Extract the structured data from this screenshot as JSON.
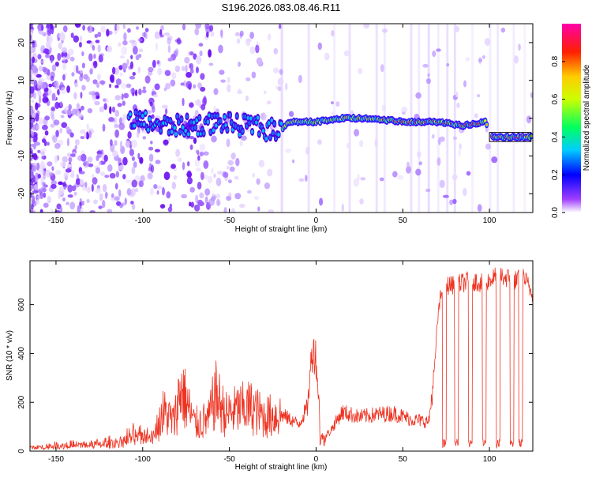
{
  "title": "S196.2026.083.08.46.R11",
  "chart_data": [
    {
      "type": "heatmap",
      "xlabel": "Height of straight line (km)",
      "ylabel": "Frequency (Hz)",
      "xlim": [
        -165,
        125
      ],
      "ylim": [
        -25,
        25
      ],
      "xticks": [
        -150,
        -100,
        -50,
        0,
        50,
        100
      ],
      "yticks": [
        -20,
        -10,
        0,
        10,
        20
      ],
      "colorbar": {
        "label": "Normalized spectral amplitude",
        "range": [
          0,
          1
        ],
        "ticks": [
          0.0,
          0.2,
          0.4,
          0.6,
          0.8
        ],
        "colors": [
          "#ffffff",
          "#8000ff",
          "#0000ff",
          "#00ffff",
          "#00ff00",
          "#ffff00",
          "#ff0000",
          "#ff00aa"
        ]
      },
      "tone_track": [
        {
          "x": -108,
          "f": 0
        },
        {
          "x": -90,
          "f": -2
        },
        {
          "x": -80,
          "f": -2
        },
        {
          "x": -70,
          "f": -2
        },
        {
          "x": -55,
          "f": -1
        },
        {
          "x": -45,
          "f": -2
        },
        {
          "x": -35,
          "f": -2
        },
        {
          "x": -30,
          "f": -3
        },
        {
          "x": -20,
          "f": -3
        },
        {
          "x": -15,
          "f": -1
        },
        {
          "x": 0,
          "f": -1
        },
        {
          "x": 15,
          "f": 0
        },
        {
          "x": 30,
          "f": 0
        },
        {
          "x": 50,
          "f": -1
        },
        {
          "x": 70,
          "f": -1
        },
        {
          "x": 85,
          "f": -2
        },
        {
          "x": 98,
          "f": -1
        },
        {
          "x": 100,
          "f": -5
        },
        {
          "x": 124,
          "f": -5
        }
      ]
    },
    {
      "type": "line",
      "xlabel": "Height of straight line (km)",
      "ylabel": "SNR (10 * v/v)",
      "xlim": [
        -165,
        125
      ],
      "ylim": [
        0,
        780
      ],
      "xticks": [
        -150,
        -100,
        -50,
        0,
        50,
        100
      ],
      "yticks": [
        0,
        200,
        400,
        600
      ],
      "series": [
        {
          "name": "SNR",
          "color": "#ee3322",
          "x": [
            -165,
            -150,
            -130,
            -115,
            -105,
            -95,
            -88,
            -82,
            -78,
            -70,
            -62,
            -58,
            -52,
            -45,
            -38,
            -30,
            -20,
            -10,
            -5,
            -2,
            0,
            3,
            8,
            15,
            25,
            35,
            45,
            55,
            65,
            68,
            70,
            72,
            75,
            80,
            85,
            90,
            95,
            100,
            105,
            110,
            115,
            120,
            125
          ],
          "y": [
            15,
            25,
            30,
            40,
            70,
            80,
            160,
            120,
            260,
            110,
            130,
            230,
            150,
            170,
            180,
            140,
            150,
            110,
            180,
            430,
            380,
            50,
            80,
            160,
            140,
            150,
            155,
            130,
            120,
            300,
            530,
            640,
            680,
            680,
            690,
            700,
            690,
            700,
            720,
            710,
            700,
            710,
            640
          ]
        }
      ]
    }
  ]
}
